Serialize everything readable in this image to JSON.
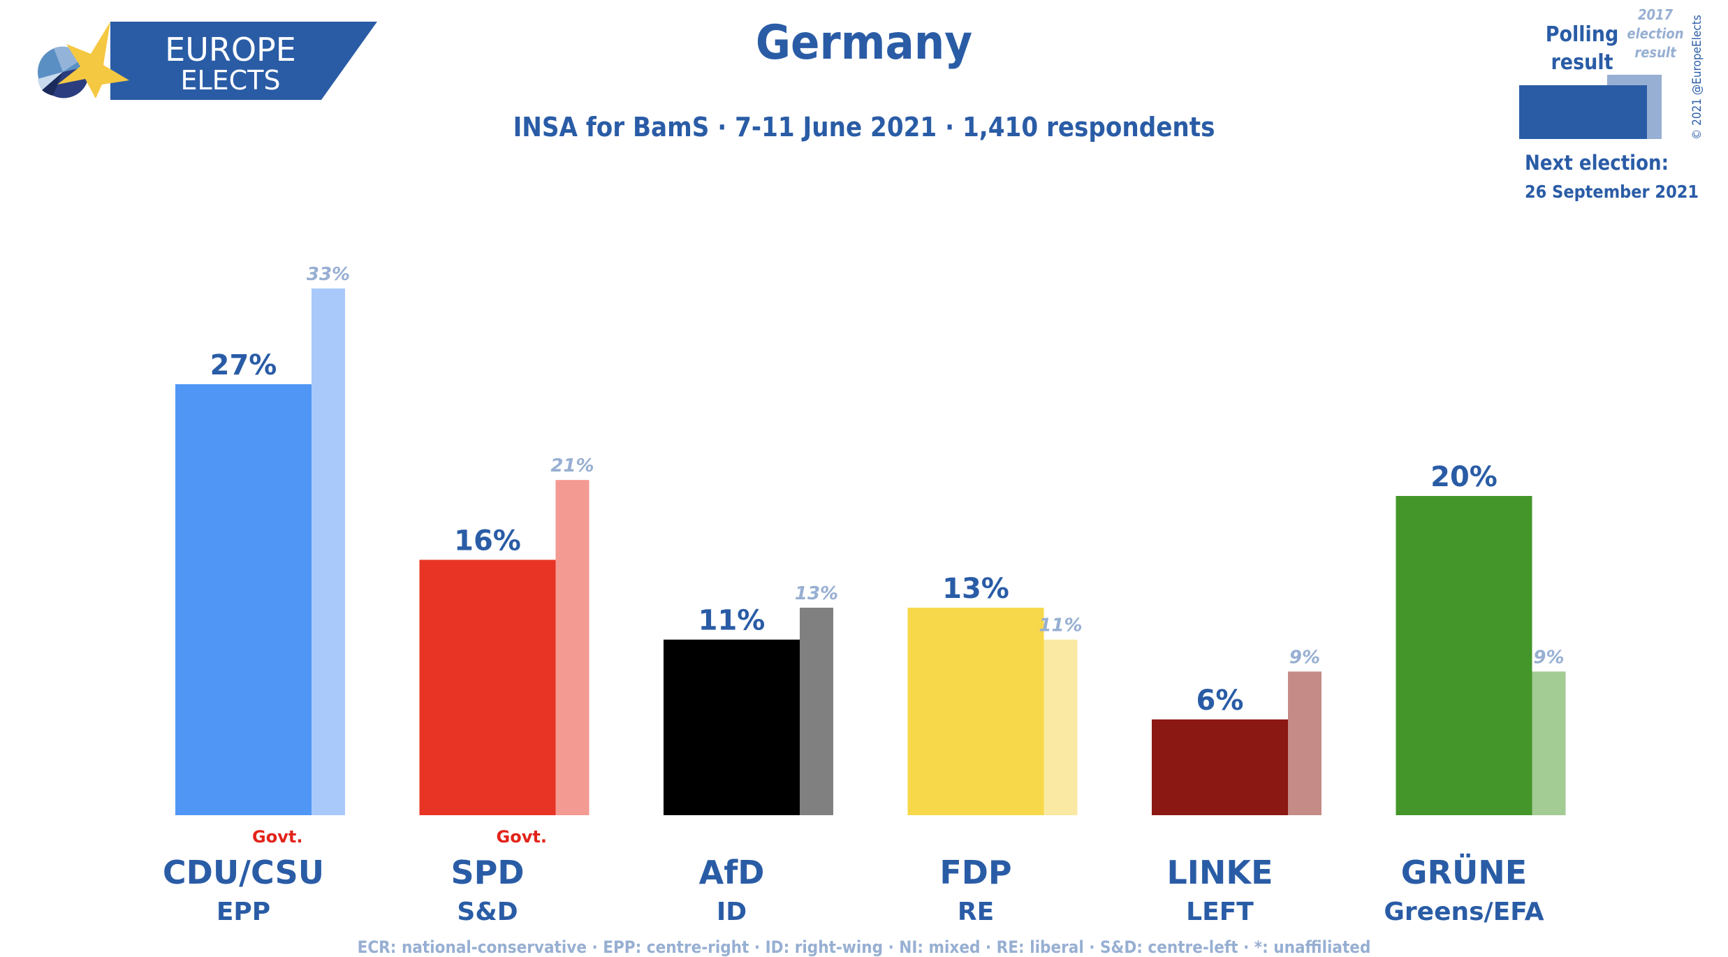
{
  "logo": {
    "line1": "EUROPE",
    "line2": "ELECTS"
  },
  "title": "Germany",
  "subtitle": "INSA for BamS · 7-11 June 2021 · 1,410 respondents",
  "legend": {
    "polling": "Polling result",
    "previous_line1": "2017",
    "previous_line2": "election",
    "previous_line3": "result",
    "copyright": "© 2021 @EuropeElects",
    "next_election_label": "Next election:",
    "next_election_date": "26 September 2021"
  },
  "footer": "ECR: national-conservative · EPP: centre-right · ID: right-wing · NI: mixed · RE: liberal · S&D: centre-left · *: unaffiliated",
  "chart_data": {
    "type": "bar",
    "categories": [
      "CDU/CSU",
      "SPD",
      "AfD",
      "FDP",
      "LINKE",
      "GRÜNE"
    ],
    "alliances": [
      "EPP",
      "S&D",
      "ID",
      "RE",
      "LEFT",
      "Greens/EFA"
    ],
    "govt": [
      "Govt.",
      "Govt.",
      "",
      "",
      "",
      ""
    ],
    "series": [
      {
        "name": "Polling result",
        "values": [
          27,
          16,
          11,
          13,
          6,
          20
        ],
        "labels": [
          "27%",
          "16%",
          "11%",
          "13%",
          "6%",
          "20%"
        ]
      },
      {
        "name": "2017 election result",
        "values": [
          33,
          21,
          13,
          11,
          9,
          9
        ],
        "labels": [
          "33%",
          "21%",
          "13%",
          "11%",
          "9%",
          "9%"
        ]
      }
    ],
    "colors": [
      "#5096F5",
      "#E83425",
      "#000000",
      "#F7D84A",
      "#8B1812",
      "#44962A"
    ],
    "prev_colors": [
      "#A9C9FA",
      "#F39A92",
      "#808080",
      "#FAE9A2",
      "#C58B87",
      "#A3CB94"
    ],
    "accent": "#2A5CA6",
    "govt_color": "#E2231A",
    "ylim": [
      0,
      35
    ]
  }
}
